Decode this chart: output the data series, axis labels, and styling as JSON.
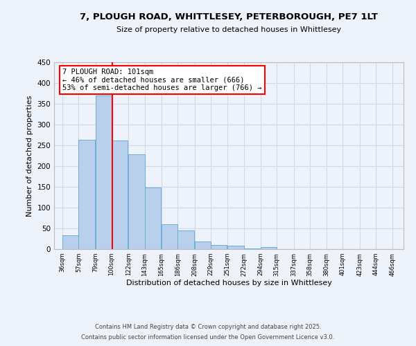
{
  "title_line1": "7, PLOUGH ROAD, WHITTLESEY, PETERBOROUGH, PE7 1LT",
  "title_line2": "Size of property relative to detached houses in Whittlesey",
  "xlabel": "Distribution of detached houses by size in Whittlesey",
  "ylabel": "Number of detached properties",
  "bar_left_edges": [
    36,
    57,
    79,
    100,
    122,
    143,
    165,
    186,
    208,
    229,
    251,
    272,
    294,
    315,
    337,
    358,
    380,
    401,
    423,
    444
  ],
  "bar_heights": [
    33,
    263,
    370,
    262,
    229,
    149,
    60,
    45,
    19,
    10,
    9,
    2,
    5,
    0,
    0,
    0,
    0,
    0,
    0,
    0
  ],
  "bin_width": 21,
  "bar_color": "#b8d0eb",
  "bar_edge_color": "#6aaed6",
  "grid_color": "#d0d8e8",
  "vline_x": 101,
  "vline_color": "red",
  "annotation_text": "7 PLOUGH ROAD: 101sqm\n← 46% of detached houses are smaller (666)\n53% of semi-detached houses are larger (766) →",
  "annotation_box_color": "white",
  "annotation_box_edge": "red",
  "tick_labels": [
    "36sqm",
    "57sqm",
    "79sqm",
    "100sqm",
    "122sqm",
    "143sqm",
    "165sqm",
    "186sqm",
    "208sqm",
    "229sqm",
    "251sqm",
    "272sqm",
    "294sqm",
    "315sqm",
    "337sqm",
    "358sqm",
    "380sqm",
    "401sqm",
    "423sqm",
    "444sqm",
    "466sqm"
  ],
  "tick_positions": [
    36,
    57,
    79,
    100,
    122,
    143,
    165,
    186,
    208,
    229,
    251,
    272,
    294,
    315,
    337,
    358,
    380,
    401,
    423,
    444,
    466
  ],
  "ylim": [
    0,
    450
  ],
  "xlim": [
    25,
    480
  ],
  "yticks": [
    0,
    50,
    100,
    150,
    200,
    250,
    300,
    350,
    400,
    450
  ],
  "footer_line1": "Contains HM Land Registry data © Crown copyright and database right 2025.",
  "footer_line2": "Contains public sector information licensed under the Open Government Licence v3.0.",
  "background_color": "#edf2fb"
}
